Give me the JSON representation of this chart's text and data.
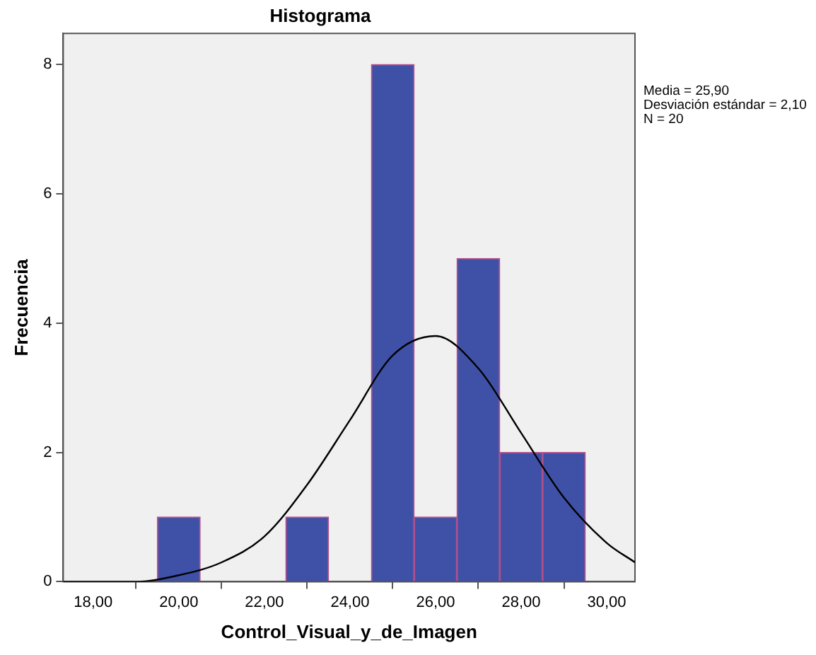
{
  "chart_data": {
    "type": "histogram",
    "title": "Histograma",
    "xlabel": "Control_Visual_y_de_Imagen",
    "ylabel": "Frecuencia",
    "bins": [
      19.5,
      20.5,
      21.5,
      22.5,
      23.5,
      24.5,
      25.5,
      26.5,
      27.5,
      28.5,
      29.5
    ],
    "values": [
      1,
      0,
      0,
      1,
      0,
      8,
      1,
      5,
      2,
      2
    ],
    "color": "#3f51a6",
    "series": [
      {
        "type": "line",
        "color": "#000000",
        "x": [
          17.3,
          18,
          19,
          20,
          21,
          22,
          23,
          24,
          25,
          26,
          27,
          28,
          29,
          30,
          30.66
        ],
        "values": [
          0,
          0,
          0,
          0.1,
          0.3,
          0.7,
          1.5,
          2.5,
          3.5,
          3.8,
          3.3,
          2.3,
          1.3,
          0.6,
          0.3
        ]
      }
    ],
    "xlim": [
      17.3,
      30.66
    ],
    "xticks": [
      {
        "value": 18,
        "label": "18,00"
      },
      {
        "value": 20,
        "label": "20,00"
      },
      {
        "value": 22,
        "label": "22,00"
      },
      {
        "value": 24,
        "label": "24,00"
      },
      {
        "value": 26,
        "label": "26,00"
      },
      {
        "value": 28,
        "label": "28,00"
      },
      {
        "value": 30,
        "label": "30,00"
      }
    ],
    "ylim": [
      0,
      8.48
    ],
    "yticks": [
      0,
      2,
      4,
      6,
      8
    ],
    "annotations": [
      "Media = 25,90",
      "Desviación estándar = 2,10",
      "N = 20"
    ],
    "grid": false,
    "legend": false,
    "marker": "none"
  }
}
